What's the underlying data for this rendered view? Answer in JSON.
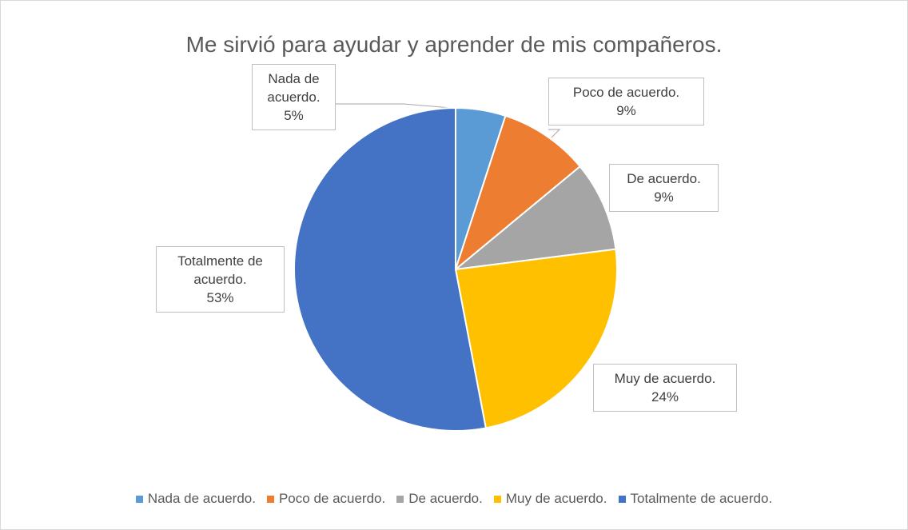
{
  "chart_data": {
    "type": "pie",
    "title": "Me sirvió para ayudar y aprender de mis compañeros.",
    "categories": [
      "Nada de acuerdo.",
      "Poco de acuerdo.",
      "De acuerdo.",
      "Muy de acuerdo.",
      "Totalmente de acuerdo."
    ],
    "values": [
      5,
      9,
      9,
      24,
      53
    ],
    "value_labels": [
      "5%",
      "9%",
      "9%",
      "24%",
      "53%"
    ],
    "colors": [
      "#5b9bd5",
      "#ed7d31",
      "#a5a5a5",
      "#ffc000",
      "#4472c4"
    ],
    "legend": "bottom"
  }
}
